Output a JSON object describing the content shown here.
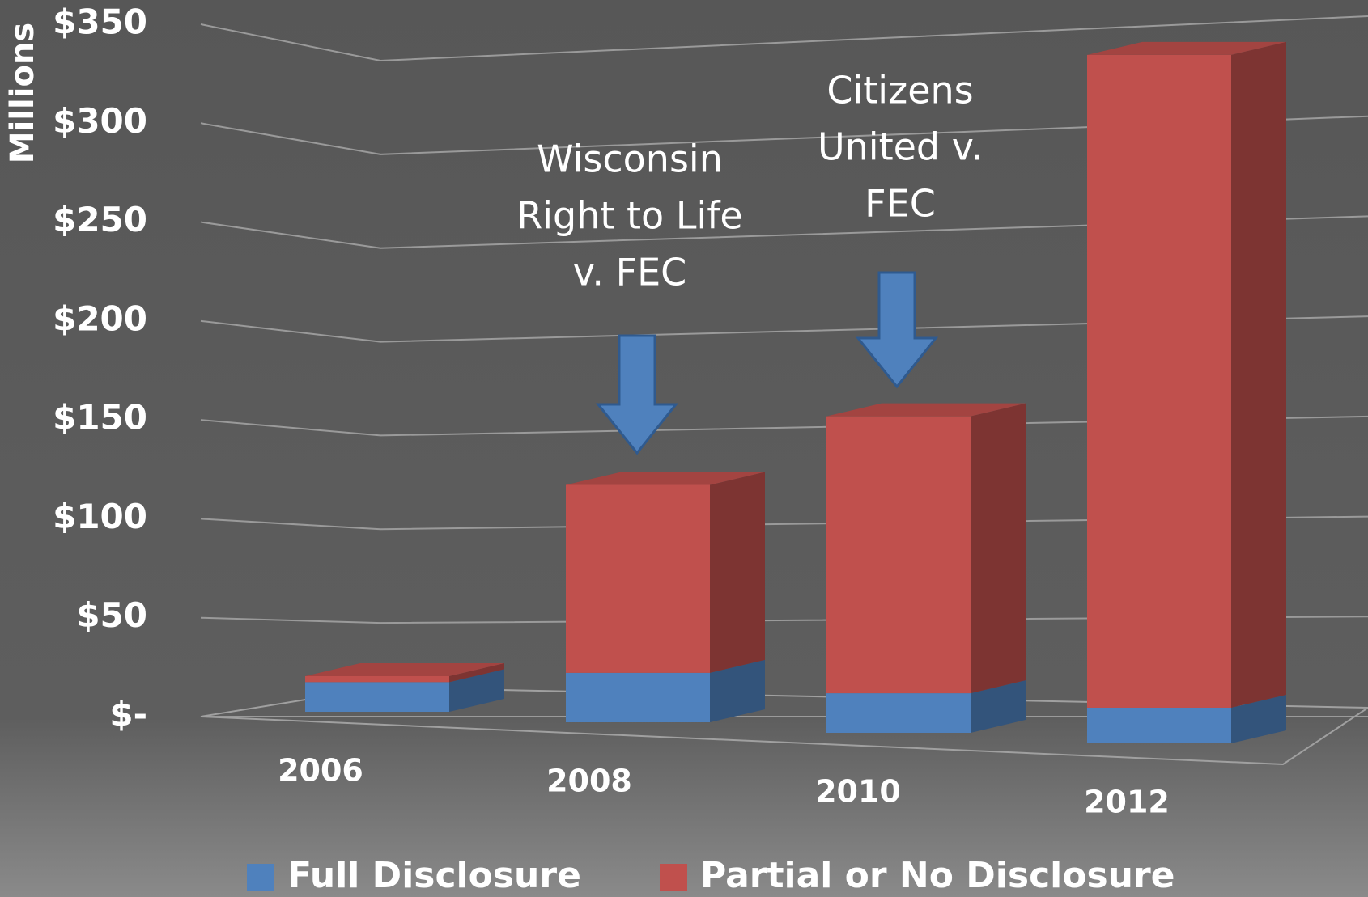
{
  "chart_data": {
    "type": "bar3d_stacked",
    "y_axis_label": "Millions",
    "categories": [
      "2006",
      "2008",
      "2010",
      "2012"
    ],
    "series": [
      {
        "name": "Full Disclosure",
        "color": "#4f81bd",
        "values": [
          15,
          25,
          20,
          18
        ]
      },
      {
        "name": "Partial or No Disclosure",
        "color": "#c0504d",
        "values": [
          3,
          95,
          140,
          330
        ]
      }
    ],
    "ylim": [
      0,
      350
    ],
    "yticks": [
      {
        "value": 0,
        "label": "$-"
      },
      {
        "value": 50,
        "label": "$50"
      },
      {
        "value": 100,
        "label": "$100"
      },
      {
        "value": 150,
        "label": "$150"
      },
      {
        "value": 200,
        "label": "$200"
      },
      {
        "value": 250,
        "label": "$250"
      },
      {
        "value": 300,
        "label": "$300"
      },
      {
        "value": 350,
        "label": "$350"
      }
    ],
    "grid": true,
    "legend": "bottom",
    "annotations": [
      {
        "lines": [
          "Wisconsin",
          "Right to Life",
          "v. FEC"
        ]
      },
      {
        "lines": [
          "Citizens",
          "United v.",
          "FEC"
        ]
      }
    ]
  }
}
